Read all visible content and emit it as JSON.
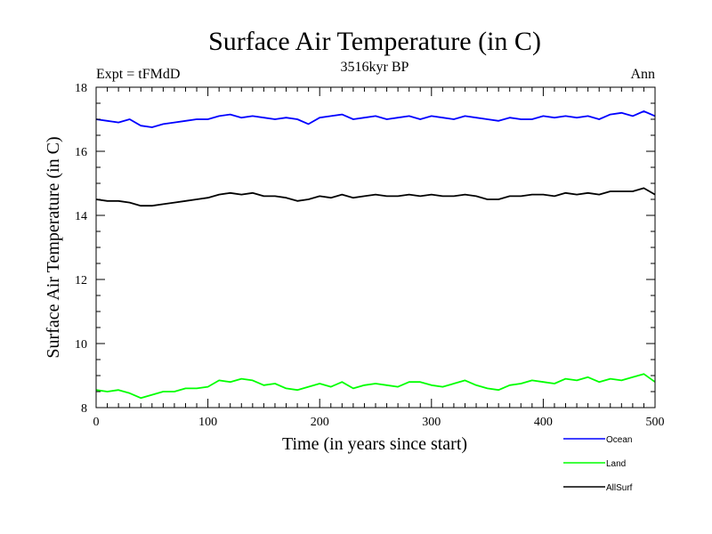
{
  "chart_data": {
    "type": "line",
    "title": "Surface Air Temperature (in C)",
    "subtitle": "3516kyr BP",
    "annotation_left": "Expt = tFMdD",
    "annotation_right": "Ann",
    "xlabel": "Time (in years since start)",
    "ylabel": "Surface Air Temperature (in C)",
    "xlim": [
      0,
      500
    ],
    "ylim": [
      8,
      18
    ],
    "x_ticks": [
      0,
      100,
      200,
      300,
      400,
      500
    ],
    "y_ticks": [
      8,
      10,
      12,
      14,
      16,
      18
    ],
    "grid": false,
    "legend_position": "below-right",
    "series": [
      {
        "name": "Ocean",
        "color": "#0000ff",
        "x": [
          0,
          10,
          20,
          30,
          40,
          50,
          60,
          70,
          80,
          90,
          100,
          110,
          120,
          130,
          140,
          150,
          160,
          170,
          180,
          190,
          200,
          210,
          220,
          230,
          240,
          250,
          260,
          270,
          280,
          290,
          300,
          310,
          320,
          330,
          340,
          350,
          360,
          370,
          380,
          390,
          400,
          410,
          420,
          430,
          440,
          450,
          460,
          470,
          480,
          490,
          500
        ],
        "values": [
          17.0,
          16.95,
          16.9,
          17.0,
          16.8,
          16.75,
          16.85,
          16.9,
          16.95,
          17.0,
          17.0,
          17.1,
          17.15,
          17.05,
          17.1,
          17.05,
          17.0,
          17.05,
          17.0,
          16.85,
          17.05,
          17.1,
          17.15,
          17.0,
          17.05,
          17.1,
          17.0,
          17.05,
          17.1,
          17.0,
          17.1,
          17.05,
          17.0,
          17.1,
          17.05,
          17.0,
          16.95,
          17.05,
          17.0,
          17.0,
          17.1,
          17.05,
          17.1,
          17.05,
          17.1,
          17.0,
          17.15,
          17.2,
          17.1,
          17.25,
          17.1
        ]
      },
      {
        "name": "Land",
        "color": "#00ff00",
        "x": [
          0,
          10,
          20,
          30,
          40,
          50,
          60,
          70,
          80,
          90,
          100,
          110,
          120,
          130,
          140,
          150,
          160,
          170,
          180,
          190,
          200,
          210,
          220,
          230,
          240,
          250,
          260,
          270,
          280,
          290,
          300,
          310,
          320,
          330,
          340,
          350,
          360,
          370,
          380,
          390,
          400,
          410,
          420,
          430,
          440,
          450,
          460,
          470,
          480,
          490,
          500
        ],
        "values": [
          8.55,
          8.5,
          8.55,
          8.45,
          8.3,
          8.4,
          8.5,
          8.5,
          8.6,
          8.6,
          8.65,
          8.85,
          8.8,
          8.9,
          8.85,
          8.7,
          8.75,
          8.6,
          8.55,
          8.65,
          8.75,
          8.65,
          8.8,
          8.6,
          8.7,
          8.75,
          8.7,
          8.65,
          8.8,
          8.8,
          8.7,
          8.65,
          8.75,
          8.85,
          8.7,
          8.6,
          8.55,
          8.7,
          8.75,
          8.85,
          8.8,
          8.75,
          8.9,
          8.85,
          8.95,
          8.8,
          8.9,
          8.85,
          8.95,
          9.05,
          8.8
        ]
      },
      {
        "name": "AllSurf",
        "color": "#000000",
        "x": [
          0,
          10,
          20,
          30,
          40,
          50,
          60,
          70,
          80,
          90,
          100,
          110,
          120,
          130,
          140,
          150,
          160,
          170,
          180,
          190,
          200,
          210,
          220,
          230,
          240,
          250,
          260,
          270,
          280,
          290,
          300,
          310,
          320,
          330,
          340,
          350,
          360,
          370,
          380,
          390,
          400,
          410,
          420,
          430,
          440,
          450,
          460,
          470,
          480,
          490,
          500
        ],
        "values": [
          14.5,
          14.45,
          14.45,
          14.4,
          14.3,
          14.3,
          14.35,
          14.4,
          14.45,
          14.5,
          14.55,
          14.65,
          14.7,
          14.65,
          14.7,
          14.6,
          14.6,
          14.55,
          14.45,
          14.5,
          14.6,
          14.55,
          14.65,
          14.55,
          14.6,
          14.65,
          14.6,
          14.6,
          14.65,
          14.6,
          14.65,
          14.6,
          14.6,
          14.65,
          14.6,
          14.5,
          14.5,
          14.6,
          14.6,
          14.65,
          14.65,
          14.6,
          14.7,
          14.65,
          14.7,
          14.65,
          14.75,
          14.75,
          14.75,
          14.85,
          14.65
        ]
      }
    ]
  }
}
